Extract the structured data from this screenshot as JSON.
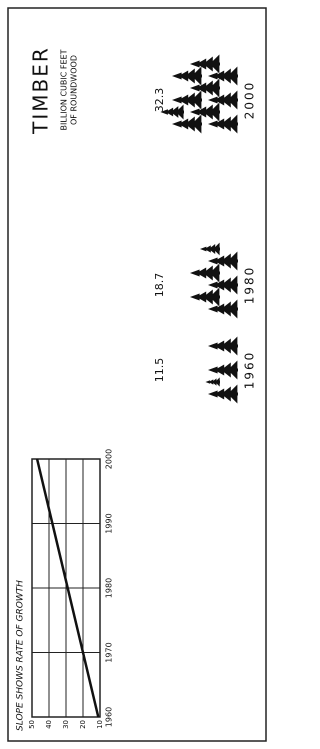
{
  "chart_data": [
    {
      "type": "pictograph",
      "title": "TIMBER",
      "subtitle": [
        "BILLION CUBIC FEET",
        "OF ROUNDWOOD"
      ],
      "categories": [
        "1960",
        "1980",
        "2000"
      ],
      "values": [
        11.5,
        18.7,
        32.3
      ],
      "color": "#111111"
    },
    {
      "type": "line",
      "title": "SLOPE SHOWS RATE OF GROWTH",
      "x": [
        1960,
        2000
      ],
      "values": [
        11,
        47
      ],
      "color": "#111111",
      "xlim": [
        1960,
        2000
      ],
      "xticks": [
        1960,
        1970,
        1980,
        1990,
        2000
      ],
      "ylim": [
        10,
        50
      ],
      "yticks": [
        10,
        20,
        30,
        40,
        50
      ],
      "grid": true
    }
  ]
}
